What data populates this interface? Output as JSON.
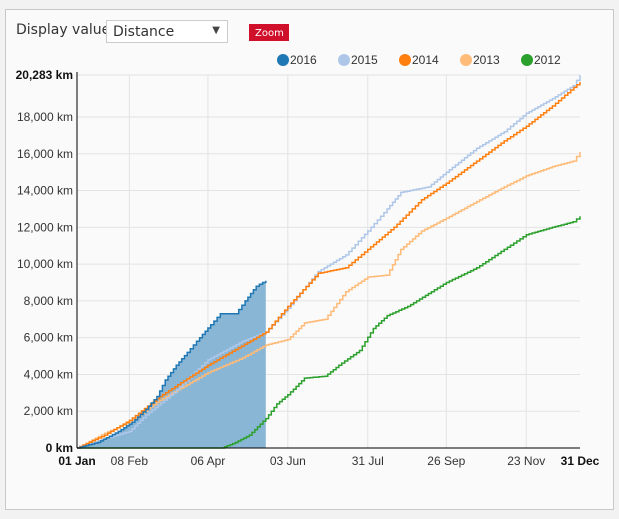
{
  "controls": {
    "display_label": "Display value:",
    "display_value": "Distance",
    "zoom_label": "Zoom"
  },
  "chart_data": {
    "type": "line",
    "title": "",
    "xlabel": "",
    "ylabel": "",
    "x_unit": "day of year",
    "xlim": [
      0,
      365
    ],
    "ylim": [
      0,
      20283
    ],
    "y_ticks": [
      {
        "v": 0,
        "label": "0 km",
        "bold": true
      },
      {
        "v": 2000,
        "label": "2,000 km"
      },
      {
        "v": 4000,
        "label": "4,000 km"
      },
      {
        "v": 6000,
        "label": "6,000 km"
      },
      {
        "v": 8000,
        "label": "8,000 km"
      },
      {
        "v": 10000,
        "label": "10,000 km"
      },
      {
        "v": 12000,
        "label": "12,000 km"
      },
      {
        "v": 14000,
        "label": "14,000 km"
      },
      {
        "v": 16000,
        "label": "16,000 km"
      },
      {
        "v": 18000,
        "label": "18,000 km"
      },
      {
        "v": 20283,
        "label": "20,283 km",
        "bold": true
      }
    ],
    "x_ticks": [
      {
        "v": 0,
        "label": "01 Jan",
        "bold": true
      },
      {
        "v": 38,
        "label": "08 Feb"
      },
      {
        "v": 95,
        "label": "06 Apr"
      },
      {
        "v": 153,
        "label": "03 Jun"
      },
      {
        "v": 211,
        "label": "31 Jul"
      },
      {
        "v": 268,
        "label": "26 Sep"
      },
      {
        "v": 326,
        "label": "23 Nov"
      },
      {
        "v": 365,
        "label": "31 Dec",
        "bold": true
      }
    ],
    "legend_position": "top-right",
    "series": [
      {
        "name": "2016",
        "color": "#1f77b4",
        "filled": true,
        "fill": "#8ab6d6",
        "points": [
          [
            0,
            0
          ],
          [
            15,
            300
          ],
          [
            30,
            900
          ],
          [
            40,
            1400
          ],
          [
            50,
            2100
          ],
          [
            58,
            2800
          ],
          [
            64,
            3700
          ],
          [
            72,
            4500
          ],
          [
            80,
            5200
          ],
          [
            89,
            6000
          ],
          [
            97,
            6700
          ],
          [
            104,
            7300
          ],
          [
            115,
            7300
          ],
          [
            122,
            8000
          ],
          [
            130,
            8800
          ],
          [
            137,
            9100
          ]
        ]
      },
      {
        "name": "2015",
        "color": "#aec7e8",
        "points": [
          [
            0,
            0
          ],
          [
            20,
            500
          ],
          [
            38,
            900
          ],
          [
            50,
            1800
          ],
          [
            70,
            3000
          ],
          [
            95,
            4800
          ],
          [
            120,
            5800
          ],
          [
            137,
            6300
          ],
          [
            153,
            7600
          ],
          [
            175,
            9600
          ],
          [
            195,
            10500
          ],
          [
            211,
            11800
          ],
          [
            225,
            13000
          ],
          [
            235,
            13900
          ],
          [
            255,
            14200
          ],
          [
            268,
            15000
          ],
          [
            290,
            16300
          ],
          [
            310,
            17200
          ],
          [
            326,
            18200
          ],
          [
            345,
            19000
          ],
          [
            360,
            19700
          ],
          [
            365,
            20283
          ]
        ]
      },
      {
        "name": "2014",
        "color": "#ff7f0e",
        "points": [
          [
            0,
            0
          ],
          [
            20,
            700
          ],
          [
            38,
            1500
          ],
          [
            60,
            2800
          ],
          [
            95,
            4500
          ],
          [
            137,
            6300
          ],
          [
            153,
            7700
          ],
          [
            175,
            9500
          ],
          [
            195,
            9800
          ],
          [
            211,
            10800
          ],
          [
            230,
            12000
          ],
          [
            250,
            13500
          ],
          [
            268,
            14400
          ],
          [
            290,
            15600
          ],
          [
            310,
            16700
          ],
          [
            326,
            17500
          ],
          [
            345,
            18600
          ],
          [
            365,
            19900
          ]
        ]
      },
      {
        "name": "2013",
        "color": "#ffbb78",
        "points": [
          [
            0,
            0
          ],
          [
            20,
            800
          ],
          [
            38,
            1400
          ],
          [
            60,
            2600
          ],
          [
            95,
            4100
          ],
          [
            120,
            4900
          ],
          [
            137,
            5600
          ],
          [
            153,
            5900
          ],
          [
            165,
            6800
          ],
          [
            180,
            7000
          ],
          [
            195,
            8500
          ],
          [
            211,
            9300
          ],
          [
            225,
            9400
          ],
          [
            235,
            10800
          ],
          [
            250,
            11800
          ],
          [
            268,
            12500
          ],
          [
            290,
            13400
          ],
          [
            310,
            14200
          ],
          [
            326,
            14800
          ],
          [
            345,
            15300
          ],
          [
            360,
            15600
          ],
          [
            365,
            16100
          ]
        ]
      },
      {
        "name": "2012",
        "color": "#2ca02c",
        "points": [
          [
            0,
            0
          ],
          [
            105,
            0
          ],
          [
            115,
            300
          ],
          [
            125,
            700
          ],
          [
            137,
            1600
          ],
          [
            145,
            2400
          ],
          [
            153,
            2900
          ],
          [
            165,
            3800
          ],
          [
            180,
            3900
          ],
          [
            190,
            4500
          ],
          [
            205,
            5300
          ],
          [
            215,
            6500
          ],
          [
            225,
            7200
          ],
          [
            240,
            7700
          ],
          [
            255,
            8400
          ],
          [
            268,
            9000
          ],
          [
            290,
            9800
          ],
          [
            310,
            10800
          ],
          [
            326,
            11600
          ],
          [
            345,
            12000
          ],
          [
            360,
            12300
          ],
          [
            365,
            12600
          ]
        ]
      }
    ]
  }
}
